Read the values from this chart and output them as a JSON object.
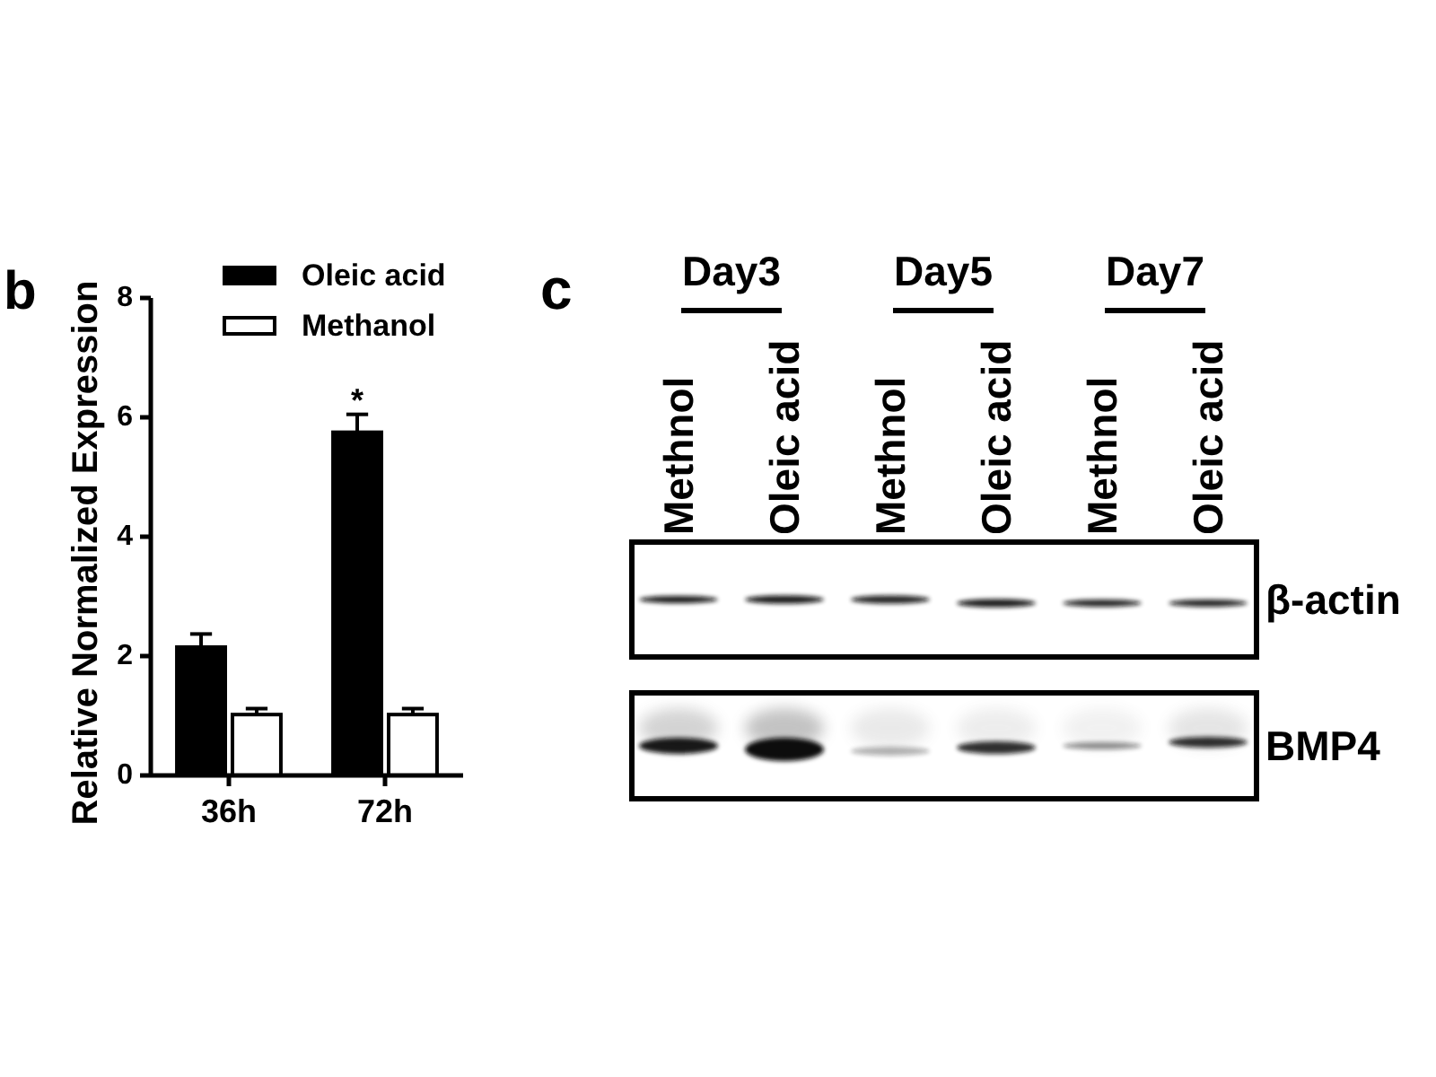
{
  "chart_data": [
    {
      "type": "bar",
      "title": "b",
      "ylabel": "Relative Normalized Expression",
      "categories": [
        "36h",
        "72h"
      ],
      "series": [
        {
          "name": "Oleic acid",
          "color": "#000000",
          "values": [
            2.15,
            5.75
          ],
          "errors": [
            0.22,
            0.3
          ]
        },
        {
          "name": "Methanol",
          "color": "#ffffff",
          "values": [
            1.02,
            1.02
          ],
          "errors": [
            0.1,
            0.1
          ]
        }
      ],
      "ylim": [
        0,
        8
      ],
      "yticks": [
        0,
        2,
        4,
        6,
        8
      ],
      "legend": "top right",
      "annotations": [
        "*"
      ]
    },
    {
      "type": "other",
      "title": "c",
      "annotations": [
        "Day3",
        "Day5",
        "Day7"
      ],
      "categories": [
        "Methnol",
        "Oleic acid",
        "Methnol",
        "Oleic acid",
        "Methnol",
        "Oleic acid"
      ],
      "y_categories": [
        "β-actin",
        "BMP4"
      ]
    }
  ]
}
